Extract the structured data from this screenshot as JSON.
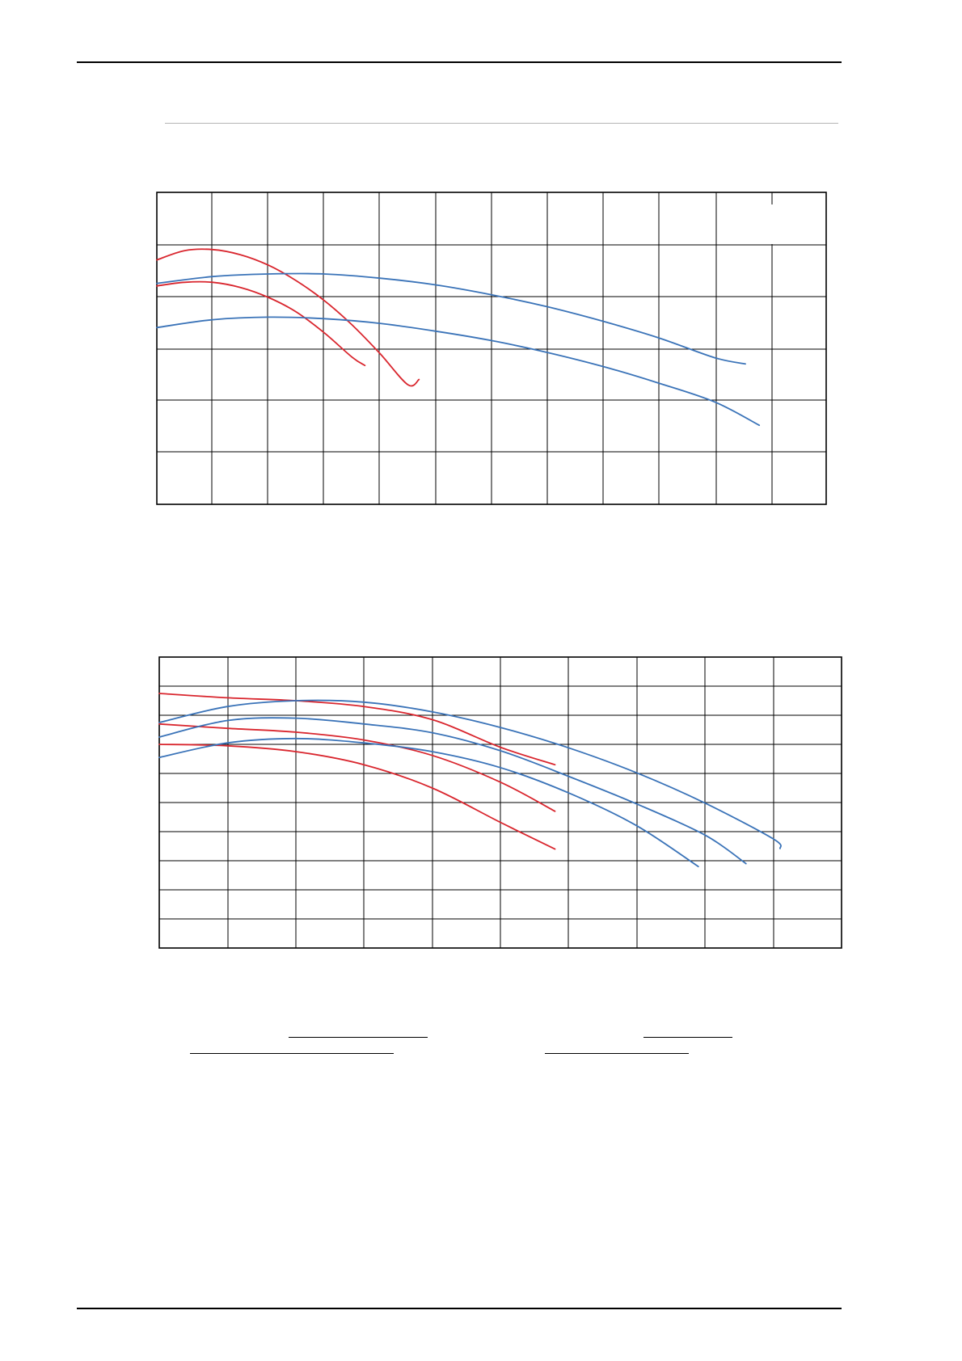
{
  "page": {
    "header_rule": true,
    "footer_rule": true
  },
  "colors": {
    "grid": "#000000",
    "red_series": "#d9262e",
    "blue_series": "#3a73b8",
    "subtitle_rule": "#b5b5b5"
  },
  "chart_data": [
    {
      "type": "line",
      "title": "",
      "xlabel": "",
      "ylabel": "",
      "grid": true,
      "xlim": [
        0,
        12
      ],
      "ylim": [
        0,
        6
      ],
      "series": [
        {
          "color_key": "red_series",
          "x": [
            0,
            0.5,
            1,
            1.5,
            2,
            2.5,
            3,
            3.5,
            4,
            4.5,
            4.7
          ],
          "y": [
            4.7,
            4.88,
            4.9,
            4.8,
            4.6,
            4.3,
            3.92,
            3.45,
            2.9,
            2.3,
            2.4
          ]
        },
        {
          "color_key": "red_series",
          "x": [
            0,
            0.5,
            1,
            1.5,
            2,
            2.5,
            3,
            3.5,
            3.73
          ],
          "y": [
            4.2,
            4.27,
            4.27,
            4.17,
            3.98,
            3.7,
            3.3,
            2.83,
            2.67
          ]
        },
        {
          "color_key": "blue_series",
          "x": [
            0,
            1,
            2,
            3,
            4,
            5,
            6,
            7,
            8,
            9,
            10,
            10.55
          ],
          "y": [
            4.25,
            4.38,
            4.43,
            4.43,
            4.35,
            4.22,
            4.03,
            3.8,
            3.52,
            3.2,
            2.82,
            2.7
          ]
        },
        {
          "color_key": "blue_series",
          "x": [
            0,
            1,
            2,
            3,
            4,
            5,
            6,
            7,
            8,
            9,
            10,
            10.8
          ],
          "y": [
            3.4,
            3.55,
            3.6,
            3.57,
            3.48,
            3.33,
            3.15,
            2.92,
            2.65,
            2.33,
            1.97,
            1.52
          ]
        }
      ]
    },
    {
      "type": "line",
      "title": "",
      "xlabel": "",
      "ylabel": "",
      "grid": true,
      "xlim": [
        0,
        10
      ],
      "ylim": [
        0,
        10
      ],
      "series": [
        {
          "color_key": "red_series",
          "x": [
            0,
            1,
            2,
            3,
            4,
            5,
            5.8
          ],
          "y": [
            8.75,
            8.6,
            8.5,
            8.3,
            7.85,
            6.9,
            6.3
          ]
        },
        {
          "color_key": "red_series",
          "x": [
            0,
            1,
            2,
            3,
            4,
            5,
            5.8
          ],
          "y": [
            7.7,
            7.55,
            7.42,
            7.15,
            6.62,
            5.7,
            4.7
          ]
        },
        {
          "color_key": "red_series",
          "x": [
            0,
            1,
            2,
            3,
            4,
            5,
            5.8
          ],
          "y": [
            7.0,
            6.95,
            6.75,
            6.3,
            5.5,
            4.32,
            3.4
          ]
        },
        {
          "color_key": "blue_series",
          "x": [
            0,
            1,
            2,
            3,
            4,
            5,
            6,
            7,
            8,
            9,
            9.1
          ],
          "y": [
            7.75,
            8.3,
            8.5,
            8.45,
            8.12,
            7.58,
            6.88,
            6.02,
            4.98,
            3.75,
            3.42
          ]
        },
        {
          "color_key": "blue_series",
          "x": [
            0,
            1,
            2,
            3,
            4,
            5,
            6,
            7,
            8,
            8.6
          ],
          "y": [
            7.25,
            7.82,
            7.9,
            7.7,
            7.4,
            6.78,
            5.9,
            4.95,
            3.88,
            2.9
          ]
        },
        {
          "color_key": "blue_series",
          "x": [
            0,
            1,
            2,
            3,
            4,
            5,
            6,
            7,
            7.9
          ],
          "y": [
            6.55,
            7.05,
            7.2,
            7.05,
            6.75,
            6.2,
            5.33,
            4.2,
            2.8
          ]
        }
      ]
    }
  ]
}
